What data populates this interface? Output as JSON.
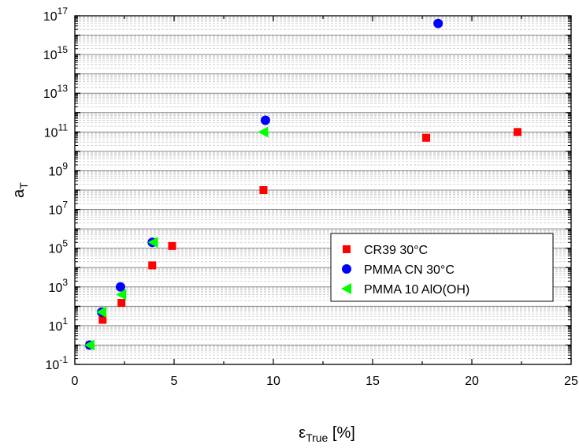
{
  "chart_data": {
    "type": "scatter",
    "xlabel_symbol": "ε",
    "xlabel_sub": "True",
    "xlabel_unit": "[%]",
    "ylabel_symbol": "a",
    "ylabel_sub": "T",
    "xlim": [
      0,
      25
    ],
    "ylim": [
      0.1,
      1e+17
    ],
    "y_scale": "log",
    "grid": true,
    "legend_position": "center-right",
    "x_ticks": [
      {
        "value": 0,
        "label": "0"
      },
      {
        "value": 5,
        "label": "5"
      },
      {
        "value": 10,
        "label": "10"
      },
      {
        "value": 15,
        "label": "15"
      },
      {
        "value": 20,
        "label": "20"
      },
      {
        "value": 25,
        "label": "25"
      }
    ],
    "y_ticks": [
      {
        "value": 0.1,
        "base": "10",
        "exp": "-1"
      },
      {
        "value": 10,
        "base": "10",
        "exp": "1"
      },
      {
        "value": 1000,
        "base": "10",
        "exp": "3"
      },
      {
        "value": 100000,
        "base": "10",
        "exp": "5"
      },
      {
        "value": 10000000,
        "base": "10",
        "exp": "7"
      },
      {
        "value": 1000000000,
        "base": "10",
        "exp": "9"
      },
      {
        "value": 100000000000,
        "base": "10",
        "exp": "11"
      },
      {
        "value": 10000000000000,
        "base": "10",
        "exp": "13"
      },
      {
        "value": 1000000000000000,
        "base": "10",
        "exp": "15"
      },
      {
        "value": 100000000000000000,
        "base": "10",
        "exp": "17"
      }
    ],
    "series": [
      {
        "name": "CR39 30°C",
        "marker": "square",
        "color": "#ff0000",
        "points": [
          {
            "x": 0.75,
            "y": 1
          },
          {
            "x": 1.4,
            "y": 20
          },
          {
            "x": 2.35,
            "y": 150
          },
          {
            "x": 3.9,
            "y": 13000
          },
          {
            "x": 4.9,
            "y": 130000
          },
          {
            "x": 9.5,
            "y": 100000000
          },
          {
            "x": 17.7,
            "y": 50000000000
          },
          {
            "x": 22.3,
            "y": 100000000000
          }
        ]
      },
      {
        "name": "PMMA CN 30°C",
        "marker": "circle",
        "color": "#0000ff",
        "points": [
          {
            "x": 0.75,
            "y": 1
          },
          {
            "x": 1.35,
            "y": 50
          },
          {
            "x": 2.3,
            "y": 1000
          },
          {
            "x": 3.9,
            "y": 200000
          },
          {
            "x": 9.6,
            "y": 400000000000
          },
          {
            "x": 18.3,
            "y": 40000000000000000
          }
        ]
      },
      {
        "name": "PMMA 10 AlO(OH)",
        "marker": "triangle-left",
        "color": "#00ff00",
        "points": [
          {
            "x": 0.75,
            "y": 1
          },
          {
            "x": 1.35,
            "y": 50
          },
          {
            "x": 2.35,
            "y": 400
          },
          {
            "x": 3.95,
            "y": 200000
          },
          {
            "x": 9.5,
            "y": 100000000000
          }
        ]
      }
    ]
  }
}
